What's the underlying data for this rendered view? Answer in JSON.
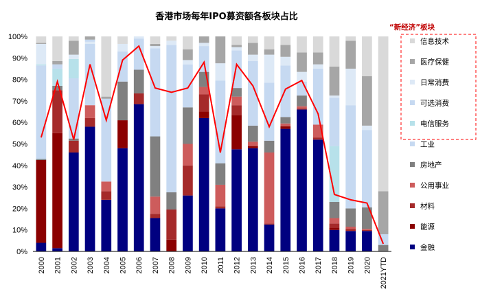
{
  "chart_data": {
    "type": "bar",
    "stacked": true,
    "title": "香港市场每年IPO募资额各板块占比",
    "ylim": [
      0,
      100
    ],
    "yticks": [
      "0%",
      "10%",
      "20%",
      "30%",
      "40%",
      "50%",
      "60%",
      "70%",
      "80%",
      "90%",
      "100%"
    ],
    "categories": [
      "2000",
      "2001",
      "2002",
      "2003",
      "2004",
      "2005",
      "2006",
      "2007",
      "2008",
      "2009",
      "2010",
      "2011",
      "2012",
      "2013",
      "2014",
      "2015",
      "2016",
      "2017",
      "2018",
      "2019",
      "2020",
      "2021YTD"
    ],
    "series": [
      {
        "name": "金融",
        "color": "#000080",
        "values": [
          4,
          1.5,
          46,
          58,
          24,
          48,
          68.5,
          15.5,
          0,
          26,
          62,
          20,
          47.5,
          48,
          12.5,
          57,
          66,
          52,
          10,
          9.5,
          9.5,
          0
        ]
      },
      {
        "name": "能源",
        "color": "#8b0000",
        "values": [
          38.5,
          53.5,
          0,
          0,
          0,
          13,
          0,
          0,
          5.5,
          0,
          0,
          0,
          0,
          0,
          0,
          0,
          0,
          0,
          0,
          0,
          0,
          0
        ]
      },
      {
        "name": "材料",
        "color": "#a52a2a",
        "values": [
          0,
          20,
          5.5,
          4,
          4,
          0,
          5,
          2,
          14,
          14,
          3.5,
          1,
          16,
          1,
          0.5,
          1.5,
          0.5,
          1,
          2,
          1,
          0.5,
          0
        ]
      },
      {
        "name": "公用事业",
        "color": "#cd5c5c",
        "values": [
          0,
          0,
          0,
          6,
          4.5,
          0,
          0,
          8,
          0,
          10,
          0,
          10,
          4,
          2,
          33,
          1,
          1,
          6,
          2.5,
          1,
          0.5,
          0
        ]
      },
      {
        "name": "房地产",
        "color": "#808080",
        "values": [
          0.5,
          2,
          1,
          0,
          0,
          18,
          11,
          28,
          8,
          17,
          7,
          10,
          8.5,
          7.5,
          5.5,
          3,
          5,
          0,
          0,
          8,
          10,
          3
        ]
      },
      {
        "name": "工业",
        "color": "#c6d9f1",
        "values": [
          48,
          8,
          28,
          28.5,
          39,
          14,
          14.5,
          41,
          68.5,
          20,
          18,
          10,
          7.5,
          27,
          27,
          21,
          6.5,
          14.5,
          8,
          30,
          25,
          0
        ]
      },
      {
        "name": "电信服务",
        "color": "#b7e1ea",
        "values": [
          0,
          0,
          0,
          0,
          0,
          0,
          0,
          0,
          0,
          0,
          0,
          0,
          0,
          0,
          0,
          0,
          0,
          0,
          48.5,
          0,
          0,
          0
        ]
      },
      {
        "name": "可选消费",
        "color": "#c6d9f1",
        "values": [
          0,
          0,
          0,
          0,
          0,
          0,
          0,
          0,
          0,
          0,
          0,
          0,
          0,
          0,
          0,
          0,
          0,
          0,
          0,
          0,
          0,
          0
        ]
      },
      {
        "name": "日常消费",
        "color": "#dde9f6",
        "values": [
          6,
          0,
          0,
          0,
          0,
          0,
          0,
          0,
          0,
          0,
          0,
          0,
          0,
          0,
          0,
          0,
          0,
          0,
          0,
          0,
          0,
          0
        ]
      },
      {
        "name": "医疗保健",
        "color": "#a6a6a6",
        "values": [
          0,
          0,
          0,
          0,
          0,
          0,
          0,
          0,
          0,
          0,
          0,
          0,
          0,
          0,
          0,
          0,
          0,
          0,
          0,
          0,
          0,
          0
        ]
      },
      {
        "name": "信息技术",
        "color": "#d9d9d9",
        "values": [
          0,
          0,
          0,
          0,
          0,
          0,
          0,
          0,
          0,
          0,
          0,
          0,
          0,
          0,
          0,
          0,
          0,
          0,
          0,
          0,
          0,
          0
        ]
      }
    ],
    "stacks": [
      [
        [
          4,
          "#000080"
        ],
        [
          38.5,
          "#8b0000"
        ],
        [
          0.5,
          "#808080"
        ],
        [
          43.5,
          "#c6d9f1"
        ],
        [
          0.5,
          "#b7e1ea"
        ],
        [
          9.5,
          "#dde9f6"
        ],
        [
          0.5,
          "#a6a6a6"
        ],
        [
          3,
          "#d9d9d9"
        ]
      ],
      [
        [
          1.5,
          "#000080"
        ],
        [
          53.5,
          "#8b0000"
        ],
        [
          20,
          "#a52a2a"
        ],
        [
          2,
          "#808080"
        ],
        [
          8,
          "#b7e1ea"
        ],
        [
          2,
          "#c6d9f1"
        ],
        [
          1.5,
          "#a6a6a6"
        ],
        [
          11.5,
          "#d9d9d9"
        ]
      ],
      [
        [
          46,
          "#000080"
        ],
        [
          5.5,
          "#a52a2a"
        ],
        [
          1,
          "#808080"
        ],
        [
          28,
          "#c6d9f1"
        ],
        [
          9,
          "#b7e1ea"
        ],
        [
          2,
          "#dde9f6"
        ],
        [
          6.5,
          "#a6a6a6"
        ],
        [
          2,
          "#d9d9d9"
        ]
      ],
      [
        [
          58,
          "#000080"
        ],
        [
          4,
          "#a52a2a"
        ],
        [
          6,
          "#cd5c5c"
        ],
        [
          28.5,
          "#c6d9f1"
        ],
        [
          1,
          "#dde9f6"
        ],
        [
          1,
          "#c6d9f1"
        ],
        [
          1.5,
          "#a6a6a6"
        ]
      ],
      [
        [
          24,
          "#000080"
        ],
        [
          4,
          "#a52a2a"
        ],
        [
          4.5,
          "#cd5c5c"
        ],
        [
          38.5,
          "#c6d9f1"
        ],
        [
          1,
          "#a6a6a6"
        ],
        [
          28,
          "#d9d9d9"
        ]
      ],
      [
        [
          48,
          "#000080"
        ],
        [
          13,
          "#8b0000"
        ],
        [
          18,
          "#808080"
        ],
        [
          14,
          "#c6d9f1"
        ],
        [
          3.5,
          "#dde9f6"
        ],
        [
          3.5,
          "#d9d9d9"
        ]
      ],
      [
        [
          68.5,
          "#000080"
        ],
        [
          5,
          "#a52a2a"
        ],
        [
          11,
          "#808080"
        ],
        [
          14.5,
          "#c6d9f1"
        ],
        [
          1,
          "#dde9f6"
        ]
      ],
      [
        [
          15.5,
          "#000080"
        ],
        [
          2,
          "#a52a2a"
        ],
        [
          8,
          "#cd5c5c"
        ],
        [
          28,
          "#808080"
        ],
        [
          41,
          "#c6d9f1"
        ],
        [
          1,
          "#dde9f6"
        ],
        [
          1,
          "#a6a6a6"
        ],
        [
          3.5,
          "#d9d9d9"
        ]
      ],
      [
        [
          5.5,
          "#8b0000"
        ],
        [
          14,
          "#a52a2a"
        ],
        [
          8,
          "#808080"
        ],
        [
          68.5,
          "#c6d9f1"
        ],
        [
          2,
          "#dde9f6"
        ],
        [
          2,
          "#d9d9d9"
        ]
      ],
      [
        [
          26,
          "#000080"
        ],
        [
          1,
          "#a52a2a"
        ],
        [
          13,
          "#a52a2a"
        ],
        [
          10,
          "#cd5c5c"
        ],
        [
          17,
          "#808080"
        ],
        [
          20,
          "#c6d9f1"
        ],
        [
          2,
          "#dde9f6"
        ],
        [
          5,
          "#a6a6a6"
        ],
        [
          6,
          "#d9d9d9"
        ]
      ],
      [
        [
          62,
          "#000080"
        ],
        [
          3,
          "#8b0000"
        ],
        [
          8,
          "#a52a2a"
        ],
        [
          3.5,
          "#cd5c5c"
        ],
        [
          7,
          "#808080"
        ],
        [
          12,
          "#c6d9f1"
        ],
        [
          1.5,
          "#dde9f6"
        ],
        [
          3,
          "#a6a6a6"
        ],
        [
          0,
          "#d9d9d9"
        ]
      ],
      [
        [
          20,
          "#000080"
        ],
        [
          1,
          "#a52a2a"
        ],
        [
          10,
          "#cd5c5c"
        ],
        [
          10,
          "#808080"
        ],
        [
          38.5,
          "#c6d9f1"
        ],
        [
          8,
          "#dde9f6"
        ],
        [
          12.5,
          "#a6a6a6"
        ]
      ],
      [
        [
          47.5,
          "#000080"
        ],
        [
          16,
          "#8b0000"
        ],
        [
          4.5,
          "#a52a2a"
        ],
        [
          4,
          "#cd5c5c"
        ],
        [
          4,
          "#808080"
        ],
        [
          17.5,
          "#c6d9f1"
        ],
        [
          1.5,
          "#dde9f6"
        ],
        [
          1,
          "#a6a6a6"
        ],
        [
          4,
          "#d9d9d9"
        ]
      ],
      [
        [
          48,
          "#000080"
        ],
        [
          1,
          "#8b0000"
        ],
        [
          2,
          "#cd5c5c"
        ],
        [
          7.5,
          "#808080"
        ],
        [
          30,
          "#c6d9f1"
        ],
        [
          3,
          "#dde9f6"
        ],
        [
          5.5,
          "#a6a6a6"
        ],
        [
          3,
          "#d9d9d9"
        ]
      ],
      [
        [
          12.5,
          "#000080"
        ],
        [
          0.5,
          "#a52a2a"
        ],
        [
          33,
          "#cd5c5c"
        ],
        [
          5.5,
          "#808080"
        ],
        [
          27,
          "#c6d9f1"
        ],
        [
          13,
          "#dde9f6"
        ],
        [
          2.5,
          "#a6a6a6"
        ],
        [
          6,
          "#d9d9d9"
        ]
      ],
      [
        [
          57,
          "#000080"
        ],
        [
          1,
          "#8b0000"
        ],
        [
          0.5,
          "#a52a2a"
        ],
        [
          1,
          "#cd5c5c"
        ],
        [
          3,
          "#808080"
        ],
        [
          24,
          "#c6d9f1"
        ],
        [
          4,
          "#dde9f6"
        ],
        [
          5.5,
          "#a6a6a6"
        ],
        [
          4,
          "#d9d9d9"
        ]
      ],
      [
        [
          66,
          "#000080"
        ],
        [
          0.5,
          "#a52a2a"
        ],
        [
          1,
          "#cd5c5c"
        ],
        [
          5,
          "#808080"
        ],
        [
          6.5,
          "#c6d9f1"
        ],
        [
          4.5,
          "#dde9f6"
        ],
        [
          9,
          "#a6a6a6"
        ],
        [
          7.5,
          "#d9d9d9"
        ]
      ],
      [
        [
          52,
          "#000080"
        ],
        [
          1,
          "#a52a2a"
        ],
        [
          6,
          "#cd5c5c"
        ],
        [
          26,
          "#c6d9f1"
        ],
        [
          2,
          "#dde9f6"
        ],
        [
          5.5,
          "#a6a6a6"
        ],
        [
          7.5,
          "#d9d9d9"
        ]
      ],
      [
        [
          10,
          "#000080"
        ],
        [
          1,
          "#8b0000"
        ],
        [
          2,
          "#a52a2a"
        ],
        [
          2.5,
          "#cd5c5c"
        ],
        [
          7.5,
          "#808080"
        ],
        [
          26,
          "#b7e1ea"
        ],
        [
          22.5,
          "#c6d9f1"
        ],
        [
          1,
          "#dde9f6"
        ],
        [
          13.5,
          "#a6a6a6"
        ],
        [
          14,
          "#d9d9d9"
        ]
      ],
      [
        [
          9.5,
          "#000080"
        ],
        [
          1,
          "#a52a2a"
        ],
        [
          1,
          "#cd5c5c"
        ],
        [
          8.5,
          "#808080"
        ],
        [
          48,
          "#c6d9f1"
        ],
        [
          17,
          "#dde9f6"
        ],
        [
          13,
          "#a6a6a6"
        ],
        [
          2,
          "#d9d9d9"
        ]
      ],
      [
        [
          9.5,
          "#000080"
        ],
        [
          0.5,
          "#a52a2a"
        ],
        [
          0.5,
          "#cd5c5c"
        ],
        [
          10,
          "#808080"
        ],
        [
          36,
          "#c6d9f1"
        ],
        [
          2,
          "#dde9f6"
        ],
        [
          23,
          "#a6a6a6"
        ],
        [
          18.5,
          "#d9d9d9"
        ]
      ],
      [
        [
          0,
          "#000080"
        ],
        [
          3,
          "#808080"
        ],
        [
          5,
          "#c6d9f1"
        ],
        [
          20,
          "#a6a6a6"
        ],
        [
          72,
          "#d9d9d9"
        ]
      ]
    ],
    "line": {
      "name": "新经济",
      "color": "#ff0000",
      "values": [
        53,
        79,
        52,
        87,
        61,
        89,
        95.5,
        76,
        74,
        76,
        88,
        46,
        87,
        77,
        58,
        75.5,
        79.5,
        64,
        26.5,
        24,
        22.5,
        3.5
      ]
    },
    "legend": {
      "title": "“新经济”板块",
      "title_color": "#c00000",
      "boxed_items": [
        {
          "label": "信息技术",
          "color": "#d9d9d9"
        },
        {
          "label": "医疗保健",
          "color": "#a6a6a6"
        },
        {
          "label": "日常消费",
          "color": "#dde9f6"
        },
        {
          "label": "可选消费",
          "color": "#c6d9f1"
        },
        {
          "label": "电信服务",
          "color": "#b7e1ea"
        }
      ],
      "items": [
        {
          "label": "工业",
          "color": "#c6d9f1"
        },
        {
          "label": "房地产",
          "color": "#808080"
        },
        {
          "label": "公用事业",
          "color": "#cd5c5c"
        },
        {
          "label": "材料",
          "color": "#a52a2a"
        },
        {
          "label": "能源",
          "color": "#8b0000"
        },
        {
          "label": "金融",
          "color": "#000080"
        }
      ]
    }
  }
}
